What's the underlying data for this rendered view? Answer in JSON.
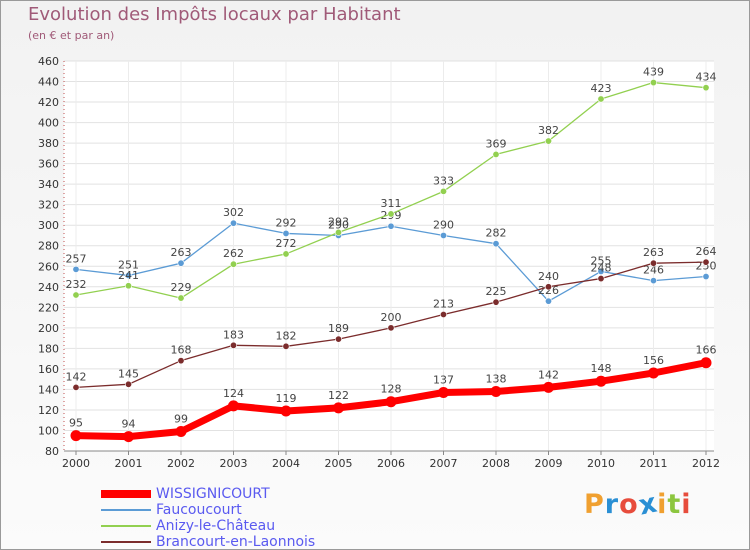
{
  "title": "Evolution des Impôts locaux par Habitant",
  "subtitle": "(en € et par an)",
  "logo": {
    "text": "Proxiti",
    "letter_colors": [
      "#f0a030",
      "#2a8fd4",
      "#e74c3c",
      "#2a8fd4",
      "#f0a030",
      "#8cc63f",
      "#e74c3c"
    ]
  },
  "chart_data": {
    "type": "line",
    "title": "Evolution des Impôts locaux par Habitant",
    "subtitle": "(en € et par an)",
    "xlabel": "",
    "ylabel": "",
    "ylim": [
      80,
      460
    ],
    "y_ticks": [
      80,
      100,
      120,
      140,
      160,
      180,
      200,
      220,
      240,
      260,
      280,
      300,
      320,
      340,
      360,
      380,
      400,
      420,
      440,
      460
    ],
    "x": [
      "2000",
      "2001",
      "2002",
      "2003",
      "2004",
      "2005",
      "2006",
      "2007",
      "2008",
      "2009",
      "2010",
      "2011",
      "2012"
    ],
    "grid": true,
    "legend_position": "bottom-left",
    "series": [
      {
        "name": "WISSIGNICOURT",
        "color": "#ff0000",
        "emphasis": true,
        "values": [
          95,
          94,
          99,
          124,
          119,
          122,
          128,
          137,
          138,
          142,
          148,
          156,
          166
        ]
      },
      {
        "name": "Faucoucourt",
        "color": "#5b9bd5",
        "values": [
          257,
          251,
          263,
          302,
          292,
          290,
          299,
          290,
          282,
          226,
          255,
          246,
          250
        ]
      },
      {
        "name": "Anizy-le-Château",
        "color": "#92d050",
        "values": [
          232,
          241,
          229,
          262,
          272,
          293,
          311,
          333,
          369,
          382,
          423,
          439,
          434
        ]
      },
      {
        "name": "Brancourt-en-Laonnois",
        "color": "#7b2c2c",
        "values": [
          142,
          145,
          168,
          183,
          182,
          189,
          200,
          213,
          225,
          240,
          248,
          263,
          264
        ]
      }
    ]
  }
}
